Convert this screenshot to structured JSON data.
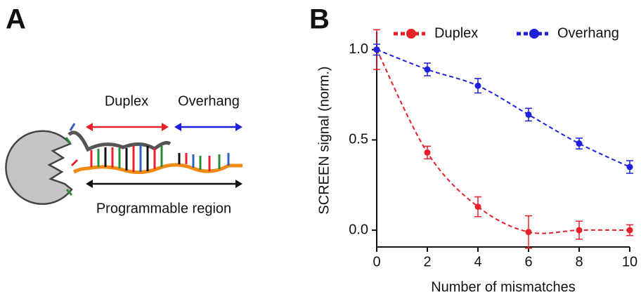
{
  "panel_a": {
    "label": "A",
    "texts": [
      "Duplex",
      "Overhang",
      "Programmable region"
    ]
  },
  "chart_data": {
    "type": "line",
    "panel_label": "B",
    "x_label": "Number of mismatches",
    "y_label": "SCREEN signal (norm.)",
    "x": [
      0,
      2,
      4,
      6,
      8,
      10
    ],
    "series": [
      {
        "name": "Duplex",
        "color": "#e8202a",
        "values": [
          1.0,
          0.43,
          0.13,
          -0.01,
          0.0,
          0.0
        ],
        "errors": [
          0.11,
          0.035,
          0.055,
          0.09,
          0.05,
          0.03
        ]
      },
      {
        "name": "Overhang",
        "color": "#1f1fe0",
        "values": [
          1.0,
          0.89,
          0.8,
          0.64,
          0.48,
          0.35
        ],
        "errors": [
          0.03,
          0.035,
          0.04,
          0.035,
          0.03,
          0.035
        ]
      }
    ],
    "xlim": [
      0,
      10
    ],
    "xticks": [
      0,
      2,
      4,
      6,
      8,
      10
    ],
    "ylim": [
      -0.093,
      1.1
    ],
    "yticks": [
      {
        "value": 0,
        "label": "0.0"
      },
      0.5,
      {
        "value": 1,
        "label": "1.0"
      }
    ],
    "line_style": "dashed",
    "legend": "top"
  }
}
